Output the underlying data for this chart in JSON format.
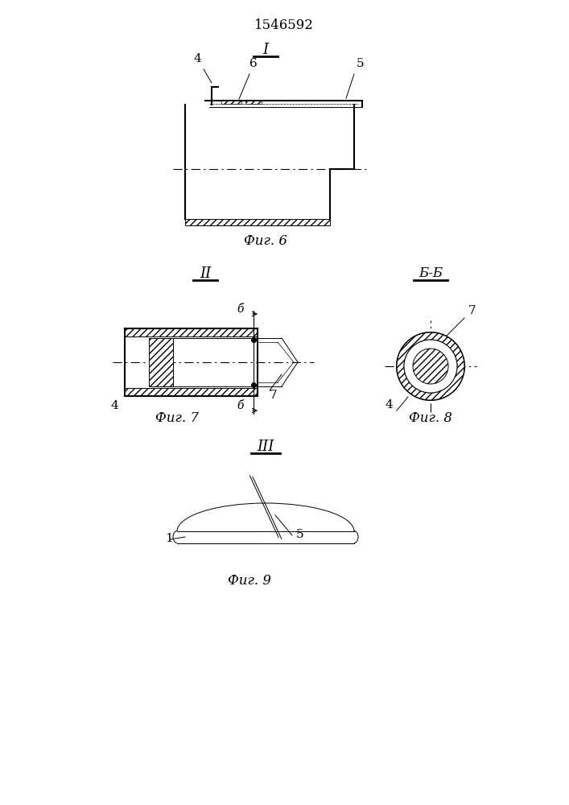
{
  "patent_number": "1546592",
  "fig6_label": "Фиг. 6",
  "fig7_label": "Фиг. 7",
  "fig8_label": "Фиг. 8",
  "fig9_label": "Фиг. 9",
  "section_I": "I",
  "section_II": "II",
  "section_III": "III",
  "section_BB": "Б-Б",
  "cut_b": "б",
  "bg_color": "#ffffff",
  "line_color": "#000000"
}
